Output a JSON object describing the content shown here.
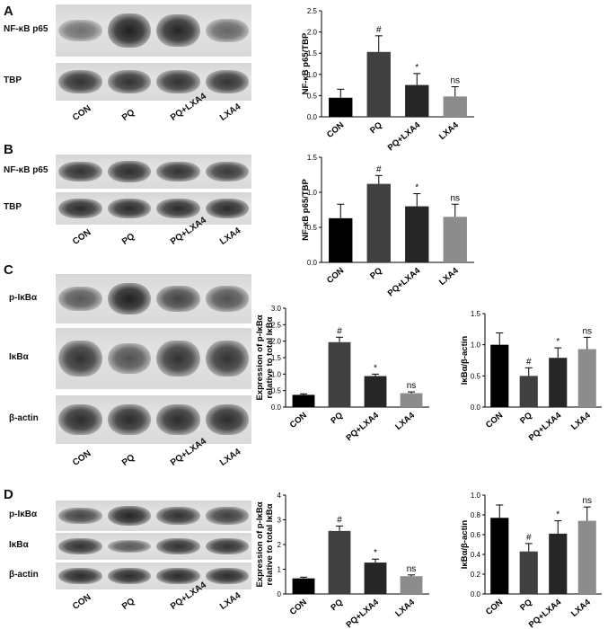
{
  "panels": [
    {
      "letter": "A"
    },
    {
      "letter": "B"
    },
    {
      "letter": "C"
    },
    {
      "letter": "D"
    }
  ],
  "lanes": [
    "CON",
    "PQ",
    "PQ+LXA4",
    "LXA4"
  ],
  "blots": {
    "A": {
      "rows": [
        "NF-κB p65",
        "TBP"
      ],
      "intensity": [
        [
          0.35,
          1.0,
          0.95,
          0.45
        ],
        [
          0.85,
          0.85,
          0.85,
          0.85
        ]
      ]
    },
    "B": {
      "rows": [
        "NF-κB p65",
        "TBP"
      ],
      "intensity": [
        [
          0.85,
          0.9,
          0.85,
          0.8
        ],
        [
          0.9,
          0.9,
          0.9,
          0.9
        ]
      ]
    },
    "C": {
      "rows": [
        "p-IκBα",
        "IκBα",
        "β-actin"
      ],
      "intensity": [
        [
          0.55,
          1.0,
          0.7,
          0.6
        ],
        [
          0.85,
          0.6,
          0.85,
          0.85
        ],
        [
          0.9,
          0.9,
          0.9,
          0.9
        ]
      ]
    },
    "D": {
      "rows": [
        "p-IκBα",
        "IκBα",
        "β-actin"
      ],
      "intensity": [
        [
          0.7,
          0.95,
          0.85,
          0.75
        ],
        [
          0.85,
          0.55,
          0.85,
          0.85
        ],
        [
          0.9,
          0.9,
          0.9,
          0.9
        ]
      ]
    }
  },
  "chart_data": [
    {
      "id": "A-chart",
      "type": "bar",
      "categories": [
        "CON",
        "PQ",
        "PQ+LXA4",
        "LXA4"
      ],
      "values": [
        0.45,
        1.53,
        0.75,
        0.48
      ],
      "errors": [
        0.2,
        0.38,
        0.27,
        0.23
      ],
      "annotations": [
        "",
        "#",
        "*",
        "ns"
      ],
      "ylabel": "NF-κB p65/TBP",
      "ylim": [
        0,
        2.5
      ],
      "yticks": [
        "0.0",
        "0.5",
        "1.0",
        "1.5",
        "2.0",
        "2.5"
      ],
      "colors": [
        "#000000",
        "#404040",
        "#262626",
        "#8c8c8c"
      ]
    },
    {
      "id": "B-chart",
      "type": "bar",
      "categories": [
        "CON",
        "PQ",
        "PQ+LXA4",
        "LXA4"
      ],
      "values": [
        0.63,
        1.12,
        0.8,
        0.65
      ],
      "errors": [
        0.2,
        0.12,
        0.18,
        0.18
      ],
      "annotations": [
        "",
        "#",
        "*",
        "ns"
      ],
      "ylabel": "NF-κB p65/TBP",
      "ylim": [
        0,
        1.5
      ],
      "yticks": [
        "0.0",
        "0.5",
        "1.0",
        "1.5"
      ],
      "colors": [
        "#000000",
        "#404040",
        "#262626",
        "#8c8c8c"
      ]
    },
    {
      "id": "C-chart1",
      "type": "bar",
      "categories": [
        "CON",
        "PQ",
        "PQ+LXA4",
        "LXA4"
      ],
      "values": [
        0.37,
        1.97,
        0.94,
        0.42
      ],
      "errors": [
        0.03,
        0.15,
        0.06,
        0.04
      ],
      "annotations": [
        "",
        "#",
        "*",
        "ns"
      ],
      "ylabel": "Expression of p-IκBα relative to total IκBα",
      "ylim": [
        0,
        3.0
      ],
      "yticks": [
        "0.0",
        "0.5",
        "1.0",
        "1.5",
        "2.0",
        "2.5",
        "3.0"
      ],
      "colors": [
        "#000000",
        "#404040",
        "#262626",
        "#8c8c8c"
      ]
    },
    {
      "id": "C-chart2",
      "type": "bar",
      "categories": [
        "CON",
        "PQ",
        "PQ+LXA4",
        "LXA4"
      ],
      "values": [
        1.0,
        0.5,
        0.79,
        0.93
      ],
      "errors": [
        0.19,
        0.13,
        0.16,
        0.19
      ],
      "annotations": [
        "",
        "#",
        "*",
        "ns"
      ],
      "ylabel": "IκBα/β-actin",
      "ylim": [
        0,
        1.5
      ],
      "yticks": [
        "0.0",
        "0.5",
        "1.0",
        "1.5"
      ],
      "colors": [
        "#000000",
        "#404040",
        "#262626",
        "#8c8c8c"
      ]
    },
    {
      "id": "D-chart1",
      "type": "bar",
      "categories": [
        "CON",
        "PQ",
        "PQ+LXA4",
        "LXA4"
      ],
      "values": [
        0.63,
        2.55,
        1.27,
        0.72
      ],
      "errors": [
        0.05,
        0.2,
        0.14,
        0.05
      ],
      "annotations": [
        "",
        "#",
        "*",
        "ns"
      ],
      "ylabel": "Expression of p-IκBα relative to total IκBα",
      "ylim": [
        0,
        4
      ],
      "yticks": [
        "0",
        "1",
        "2",
        "3",
        "4"
      ],
      "colors": [
        "#000000",
        "#404040",
        "#262626",
        "#8c8c8c"
      ]
    },
    {
      "id": "D-chart2",
      "type": "bar",
      "categories": [
        "CON",
        "PQ",
        "PQ+LXA4",
        "LXA4"
      ],
      "values": [
        0.77,
        0.43,
        0.61,
        0.74
      ],
      "errors": [
        0.13,
        0.08,
        0.13,
        0.14
      ],
      "annotations": [
        "",
        "#",
        "*",
        "ns"
      ],
      "ylabel": "IκBα/β-actin",
      "ylim": [
        0,
        1.0
      ],
      "yticks": [
        "0.0",
        "0.2",
        "0.4",
        "0.6",
        "0.8",
        "1.0"
      ],
      "colors": [
        "#000000",
        "#404040",
        "#262626",
        "#8c8c8c"
      ]
    }
  ]
}
